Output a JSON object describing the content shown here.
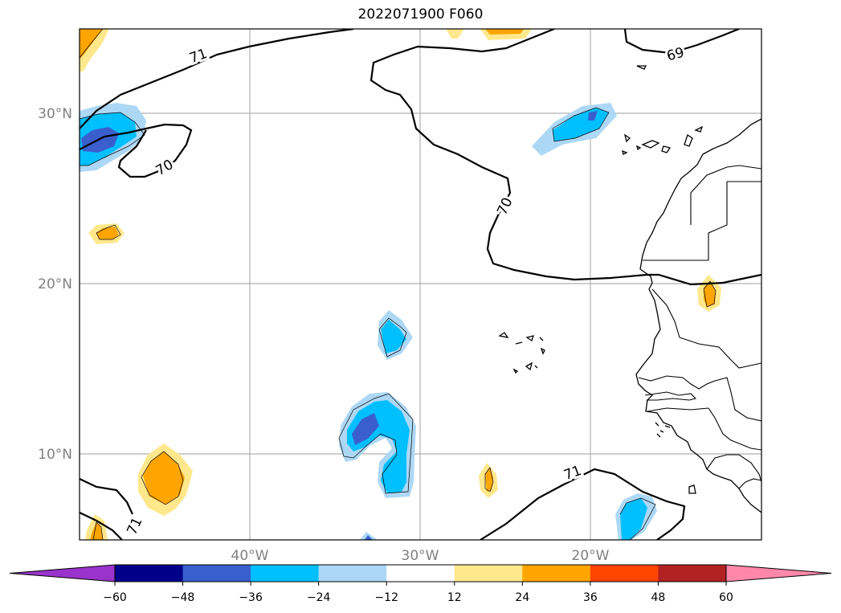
{
  "title": "2022071900 F060",
  "map": {
    "lat_labels": [
      "30°N",
      "20°N",
      "10°N"
    ],
    "lon_labels": [
      "40°W",
      "30°W",
      "20°W"
    ],
    "contour_labels": [
      "71",
      "69",
      "70",
      "70",
      "71",
      "71"
    ]
  },
  "colorbar": {
    "ticks": [
      "−60",
      "−48",
      "−36",
      "−24",
      "−12",
      "12",
      "24",
      "36",
      "48",
      "60"
    ],
    "colors": [
      "#9933cc",
      "#00008b",
      "#3a5fcd",
      "#00bfff",
      "#add8f5",
      "#ffffff",
      "#ffe88c",
      "#ffa500",
      "#ff4500",
      "#b22222",
      "#ff88aa"
    ]
  }
}
